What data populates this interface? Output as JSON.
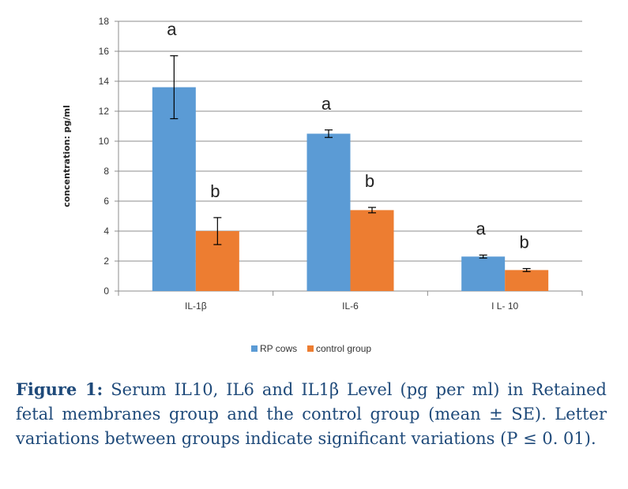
{
  "chart_data": {
    "type": "bar",
    "categories": [
      "IL-1β",
      "IL-6",
      "I L- 10"
    ],
    "series": [
      {
        "name": "RP cows",
        "color": "#5b9bd5",
        "values": [
          13.6,
          10.5,
          2.3
        ],
        "errors": [
          2.1,
          0.25,
          0.1
        ],
        "significance": [
          "a",
          "a",
          "a"
        ]
      },
      {
        "name": "control group",
        "color": "#ed7d31",
        "values": [
          4.0,
          5.4,
          1.4
        ],
        "errors": [
          0.9,
          0.18,
          0.1
        ],
        "significance": [
          "b",
          "b",
          "b"
        ]
      }
    ],
    "ylabel": "concentration: pg/ml",
    "ylim": [
      0,
      18
    ],
    "yticks": [
      0,
      2,
      4,
      6,
      8,
      10,
      12,
      14,
      16,
      18
    ],
    "grid": true,
    "legend_position": "bottom"
  },
  "caption": {
    "label": "Figure 1:",
    "text": " Serum IL10, IL6 and IL1β Level (pg per ml) in Retained fetal membranes group and the control group (mean ± SE). Letter variations between groups indicate significant variations (P ≤ 0. 01)."
  }
}
